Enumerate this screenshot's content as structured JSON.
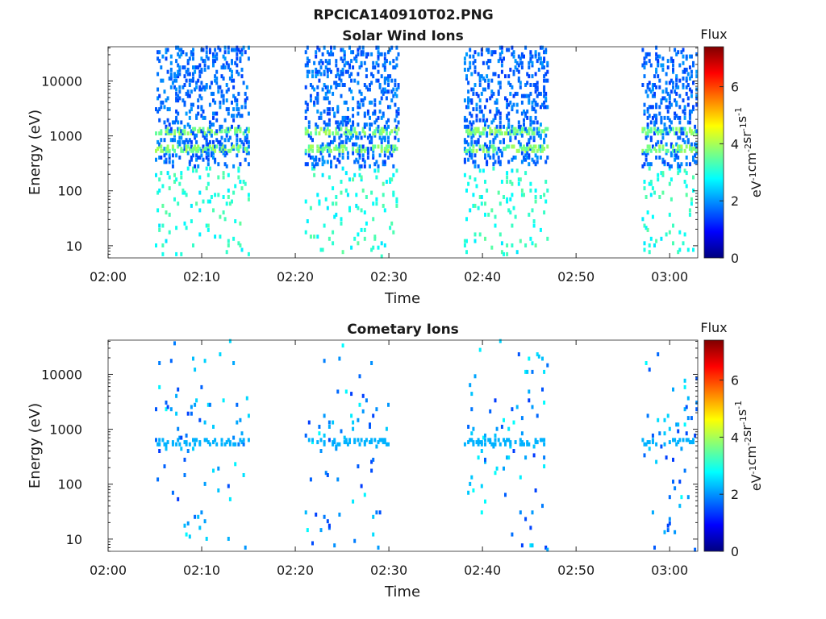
{
  "figure": {
    "title": "RPCICA140910T02.PNG"
  },
  "colormap": {
    "name": "jet",
    "stops": [
      "#00007f",
      "#0000ff",
      "#007fff",
      "#00ffff",
      "#7fff7f",
      "#ffff00",
      "#ff7f00",
      "#ff0000",
      "#7f0000"
    ]
  },
  "chart_data": [
    {
      "type": "heatmap",
      "title": "Solar Wind Ions",
      "xlabel": "Time",
      "ylabel": "Energy (eV)",
      "x_ticks": [
        "02:00",
        "02:10",
        "02:20",
        "02:30",
        "02:40",
        "02:50",
        "03:00"
      ],
      "y_ticks": [
        "10",
        "100",
        "1000",
        "10000"
      ],
      "y_scale": "log",
      "xlim": [
        "02:00",
        "03:03"
      ],
      "ylim": [
        6,
        42000
      ],
      "colorbar": {
        "label": "Flux",
        "units": "eV-1cm-2sr-1s-1",
        "ticks": [
          "0",
          "2",
          "4",
          "6"
        ],
        "range": [
          0,
          7.4
        ]
      },
      "bursts": [
        {
          "start": "02:05",
          "end": "02:15",
          "peaks_eV": [
            600,
            1200
          ]
        },
        {
          "start": "02:21",
          "end": "02:31",
          "peaks_eV": [
            600,
            1200
          ]
        },
        {
          "start": "02:38",
          "end": "02:47",
          "peaks_eV": [
            600,
            1200
          ]
        },
        {
          "start": "02:57",
          "end": "03:03",
          "peaks_eV": [
            600,
            1200
          ]
        }
      ]
    },
    {
      "type": "heatmap",
      "title": "Cometary Ions",
      "xlabel": "Time",
      "ylabel": "Energy (eV)",
      "x_ticks": [
        "02:00",
        "02:10",
        "02:20",
        "02:30",
        "02:40",
        "02:50",
        "03:00"
      ],
      "y_ticks": [
        "10",
        "100",
        "1000",
        "10000"
      ],
      "y_scale": "log",
      "xlim": [
        "02:00",
        "03:03"
      ],
      "ylim": [
        6,
        42000
      ],
      "colorbar": {
        "label": "Flux",
        "units": "eV-1cm-2sr-1s-1",
        "ticks": [
          "0",
          "2",
          "4",
          "6"
        ],
        "range": [
          0,
          7.4
        ]
      },
      "bursts": [
        {
          "start": "02:05",
          "end": "02:15",
          "peaks_eV": [
            600
          ]
        },
        {
          "start": "02:21",
          "end": "02:30",
          "peaks_eV": [
            600
          ]
        },
        {
          "start": "02:38",
          "end": "02:47",
          "peaks_eV": [
            600
          ]
        },
        {
          "start": "02:57",
          "end": "03:03",
          "peaks_eV": [
            600
          ]
        }
      ]
    }
  ]
}
